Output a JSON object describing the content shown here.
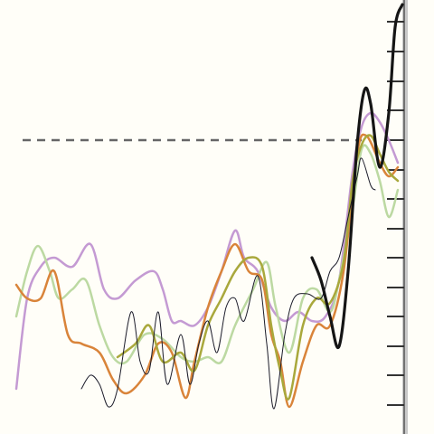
{
  "chart_data": {
    "type": "line",
    "xlim": [
      0,
      48
    ],
    "ylim": [
      0,
      48
    ],
    "yticks": [
      3.2,
      6.5,
      9.7,
      13,
      16.2,
      19.5,
      22.7,
      26,
      29.2,
      32.5,
      35.8,
      39,
      42.3,
      45.6
    ],
    "hline": 32.5,
    "series": [
      {
        "color": "#c49ad3",
        "width": 2.5,
        "x": [
          1.8,
          3,
          4.5,
          6,
          8,
          10,
          11.5,
          13,
          15,
          17,
          18,
          19,
          20,
          21.5,
          23,
          24.5,
          26,
          27,
          28.5,
          30,
          31.5,
          33,
          34.5,
          36,
          37.5,
          39,
          40,
          41,
          42,
          43,
          44
        ],
        "values": [
          5,
          15,
          18.5,
          19.5,
          18.5,
          21,
          16,
          15,
          17,
          18,
          16,
          12.5,
          12.5,
          12,
          14,
          18,
          22.5,
          19.5,
          18,
          14,
          12.5,
          13.5,
          12.5,
          13,
          17,
          29,
          34,
          35.5,
          34.5,
          32.5,
          30
        ]
      },
      {
        "color": "#bcd9a2",
        "width": 2.5,
        "x": [
          1.8,
          3,
          4.2,
          5.5,
          6.5,
          8,
          9.5,
          11,
          12.5,
          14,
          16,
          18,
          20,
          21.5,
          23,
          24.5,
          26,
          28,
          29.5,
          30.5,
          32,
          33.5,
          35,
          36.5,
          37.5,
          39,
          40,
          41,
          42,
          43,
          44
        ],
        "values": [
          13,
          18,
          20.8,
          18,
          15,
          16,
          17,
          12,
          8.5,
          8,
          11,
          10.5,
          8.5,
          8,
          8.5,
          8,
          12,
          16,
          19,
          14,
          9,
          15,
          16,
          13.5,
          17,
          25,
          31.5,
          31,
          28,
          24,
          27
        ]
      },
      {
        "color": "#d9843a",
        "width": 2.5,
        "x": [
          1.8,
          3,
          4.5,
          6,
          7.5,
          9,
          11,
          12.5,
          14,
          16,
          17.5,
          19,
          20.5,
          21.5,
          23,
          24.5,
          26,
          27.5,
          29,
          30,
          31,
          32,
          33.5,
          35,
          36.5,
          38,
          39.5,
          40.5,
          42,
          43,
          44
        ],
        "values": [
          16.5,
          15,
          15,
          18,
          11,
          10,
          9,
          6,
          4.5,
          6.5,
          10,
          9,
          4,
          8,
          14,
          18,
          21,
          18,
          17,
          11,
          8,
          3,
          8,
          12,
          12,
          18,
          31,
          33,
          30,
          28.5,
          29.5
        ]
      },
      {
        "color": "#a9a83c",
        "width": 2.5,
        "x": [
          13,
          15,
          16.5,
          18,
          20,
          21.5,
          23,
          24.5,
          26,
          27.5,
          29,
          30,
          31,
          32,
          33.5,
          35,
          36.5,
          38,
          39,
          40,
          41,
          42,
          43,
          44
        ],
        "values": [
          8.5,
          10,
          12,
          8,
          9,
          7,
          12,
          15,
          18,
          19.5,
          18.5,
          12,
          7,
          4,
          12,
          15,
          14.5,
          19,
          28,
          32,
          33,
          31,
          29,
          28
        ]
      },
      {
        "color": "#1c1c2a",
        "width": 1,
        "x": [
          9,
          10,
          11,
          12,
          13,
          14.5,
          15.5,
          16.5,
          17.5,
          18.5,
          20,
          21,
          22,
          23,
          24,
          25,
          26,
          27,
          28.5,
          29.5,
          30.3,
          31.5,
          32.5,
          34,
          35.5,
          36.5,
          37.5,
          38.5,
          39.5,
          40,
          41,
          41.5
        ],
        "values": [
          5,
          6.5,
          5.5,
          3,
          5,
          13.5,
          8,
          7,
          13.5,
          5.5,
          11,
          5.5,
          10,
          12.5,
          9,
          14,
          15,
          12.5,
          17.5,
          10,
          2.8,
          11,
          15,
          15.5,
          15,
          18,
          19.5,
          24,
          28.5,
          30.5,
          27.5,
          27
        ]
      },
      {
        "color": "#151515",
        "width": 3.2,
        "x": [
          34.5,
          35.5,
          36.5,
          37.5,
          38.5,
          39.5,
          40.3,
          41,
          42,
          43,
          43.7,
          44.5
        ],
        "values": [
          19.5,
          17,
          13,
          9.7,
          18,
          32,
          38,
          36.5,
          29.5,
          35.5,
          45,
          47.5
        ]
      }
    ]
  }
}
